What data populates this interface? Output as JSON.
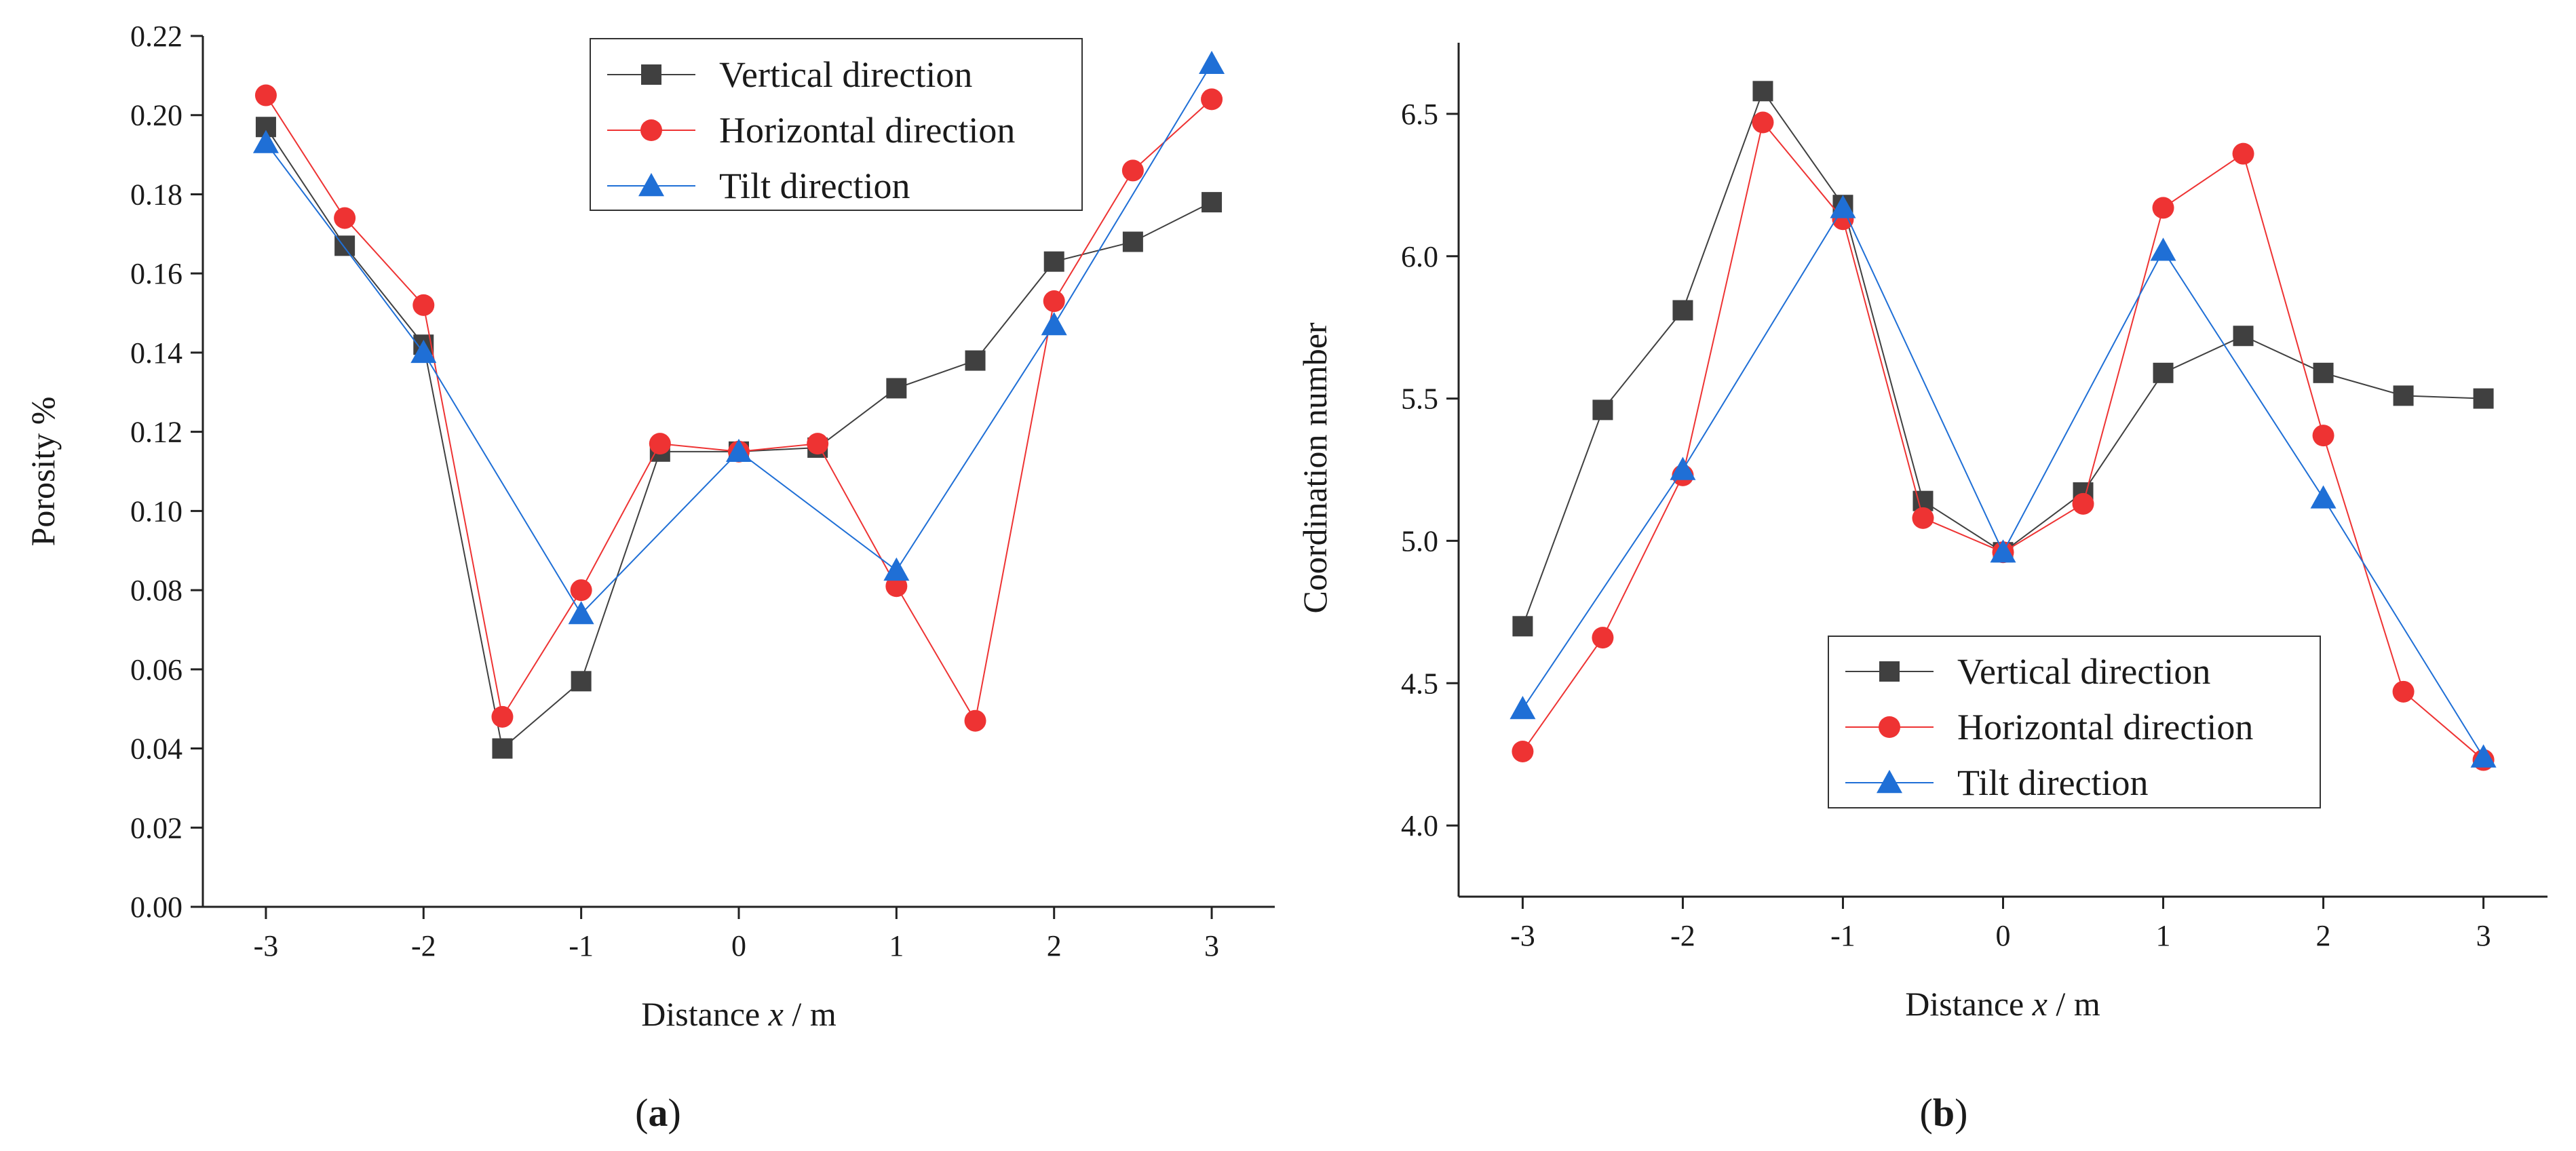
{
  "chart_data": [
    {
      "type": "line",
      "panel_label": "(a)",
      "panel_letter": "a",
      "xlabel": "Distance x / m",
      "xlabel_pre": "Distance ",
      "xlabel_var": "x",
      "xlabel_post": " / m",
      "ylabel": "Porosity %",
      "xlim": [
        -3.4,
        3.4
      ],
      "ylim": [
        0.0,
        0.22
      ],
      "xticks": [
        -3,
        -2,
        -1,
        0,
        1,
        2,
        3
      ],
      "xtick_labels": [
        "-3",
        "-2",
        "-1",
        "0",
        "1",
        "2",
        "3"
      ],
      "yticks": [
        0.0,
        0.02,
        0.04,
        0.06,
        0.08,
        0.1,
        0.12,
        0.14,
        0.16,
        0.18,
        0.2,
        0.22
      ],
      "ytick_labels": [
        "0.00",
        "0.02",
        "0.04",
        "0.06",
        "0.08",
        "0.10",
        "0.12",
        "0.14",
        "0.16",
        "0.18",
        "0.20",
        "0.22"
      ],
      "legend_position": "top-right",
      "series": [
        {
          "name": "Vertical direction",
          "marker": "square",
          "color": "#404040",
          "x": [
            -3,
            -2.5,
            -2,
            -1.5,
            -1,
            -0.5,
            0,
            0.5,
            1,
            1.5,
            2,
            2.5,
            3
          ],
          "y": [
            0.197,
            0.167,
            0.142,
            0.04,
            0.057,
            0.115,
            0.115,
            0.116,
            0.131,
            0.138,
            0.163,
            0.168,
            0.178
          ]
        },
        {
          "name": "Horizontal direction",
          "marker": "circle",
          "color": "#ee3333",
          "x": [
            -3,
            -2.5,
            -2,
            -1.5,
            -1,
            -0.5,
            0,
            0.5,
            1,
            1.5,
            2,
            2.5,
            3
          ],
          "y": [
            0.205,
            0.174,
            0.152,
            0.048,
            0.08,
            0.117,
            0.115,
            0.117,
            0.081,
            0.047,
            0.153,
            0.186,
            0.204
          ]
        },
        {
          "name": "Tilt direction",
          "marker": "triangle",
          "color": "#1f6fd6",
          "x": [
            -3,
            -2,
            -1,
            0,
            1,
            2,
            3
          ],
          "y": [
            0.193,
            0.14,
            0.074,
            0.115,
            0.085,
            0.147,
            0.213
          ]
        }
      ]
    },
    {
      "type": "line",
      "panel_label": "(b)",
      "panel_letter": "b",
      "xlabel": "Distance x / m",
      "xlabel_pre": "Distance ",
      "xlabel_var": "x",
      "xlabel_post": " / m",
      "ylabel": "Coordination number",
      "xlim": [
        -3.4,
        3.4
      ],
      "ylim": [
        3.75,
        6.75
      ],
      "xticks": [
        -3,
        -2,
        -1,
        0,
        1,
        2,
        3
      ],
      "xtick_labels": [
        "-3",
        "-2",
        "-1",
        "0",
        "1",
        "2",
        "3"
      ],
      "yticks": [
        4.0,
        4.5,
        5.0,
        5.5,
        6.0,
        6.5
      ],
      "ytick_labels": [
        "4.0",
        "4.5",
        "5.0",
        "5.5",
        "6.0",
        "6.5"
      ],
      "legend_position": "bottom-right",
      "series": [
        {
          "name": "Vertical direction",
          "marker": "square",
          "color": "#404040",
          "x": [
            -3,
            -2.5,
            -2,
            -1.5,
            -1,
            -0.5,
            0,
            0.5,
            1,
            1.5,
            2,
            2.5,
            3
          ],
          "y": [
            4.7,
            5.46,
            5.81,
            6.58,
            6.18,
            5.14,
            4.96,
            5.17,
            5.59,
            5.72,
            5.59,
            5.51,
            5.5
          ]
        },
        {
          "name": "Horizontal direction",
          "marker": "circle",
          "color": "#ee3333",
          "x": [
            -3,
            -2.5,
            -2,
            -1.5,
            -1,
            -0.5,
            0,
            0.5,
            1,
            1.5,
            2,
            2.5,
            3
          ],
          "y": [
            4.26,
            4.66,
            5.23,
            6.47,
            6.13,
            5.08,
            4.96,
            5.13,
            6.17,
            6.36,
            5.37,
            4.47,
            4.23
          ]
        },
        {
          "name": "Tilt direction",
          "marker": "triangle",
          "color": "#1f6fd6",
          "x": [
            -3,
            -2,
            -1,
            0,
            1,
            2,
            3
          ],
          "y": [
            4.41,
            5.25,
            6.17,
            4.96,
            6.02,
            5.15,
            4.24
          ]
        }
      ]
    }
  ]
}
